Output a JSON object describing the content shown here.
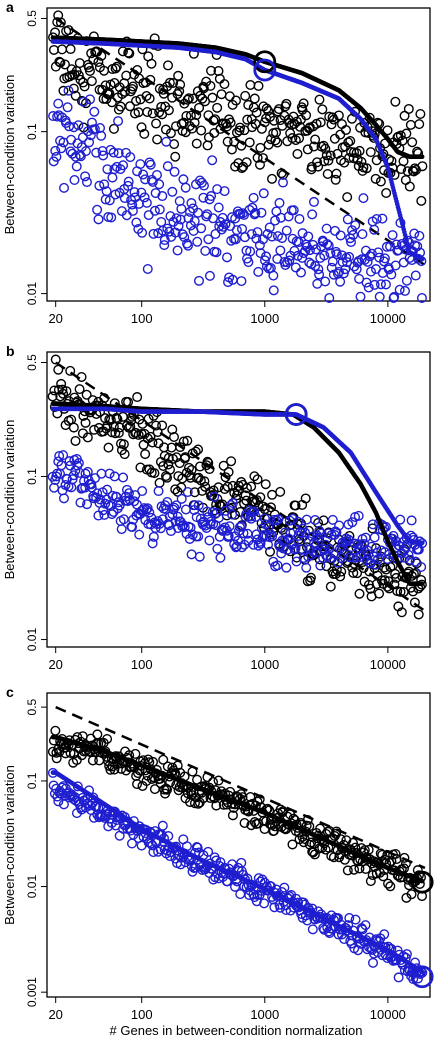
{
  "figure": {
    "xlabel": "# Genes in between-condition normalization",
    "colors": {
      "black_series": "#000000",
      "blue_series": "#1f1fd0",
      "reference_line": "#000000"
    }
  },
  "chart_data": [
    {
      "panel": "a",
      "type": "scatter",
      "ylabel": "Between-condition variation",
      "xlim": [
        17,
        22000
      ],
      "ylim": [
        0.009,
        0.58
      ],
      "log_x": true,
      "log_y": true,
      "x_ticks": [
        20,
        100,
        1000,
        10000
      ],
      "x_tick_labels": [
        "20",
        "100",
        "1000",
        "10000"
      ],
      "y_ticks": [
        0.01,
        0.1,
        0.5
      ],
      "y_tick_labels": [
        "0.01",
        "0.1",
        "0.5"
      ],
      "reference_line": {
        "x": [
          20,
          20000
        ],
        "y": [
          0.5,
          0.015
        ]
      },
      "series": [
        {
          "color": "black",
          "curve": {
            "x": [
              20,
              50,
              100,
              200,
              400,
              700,
              1000,
              2000,
              4000,
              6000,
              8000,
              10000,
              12000,
              15000,
              20000
            ],
            "y": [
              0.38,
              0.37,
              0.36,
              0.35,
              0.33,
              0.3,
              0.27,
              0.23,
              0.18,
              0.14,
              0.11,
              0.09,
              0.075,
              0.07,
              0.07
            ]
          },
          "scatter_trend": {
            "x": [
              20,
              50,
              100,
              300,
              1000,
              3000,
              10000,
              20000
            ],
            "y": [
              0.28,
              0.22,
              0.18,
              0.14,
              0.11,
              0.09,
              0.075,
              0.07
            ]
          },
          "scatter_spread": 0.3,
          "highlight": {
            "x": 1000,
            "y": 0.27
          }
        },
        {
          "color": "blue",
          "curve": {
            "x": [
              20,
              50,
              100,
              200,
              400,
              700,
              1000,
              2000,
              4000,
              6000,
              8000,
              10000,
              12000,
              15000,
              20000
            ],
            "y": [
              0.36,
              0.35,
              0.34,
              0.33,
              0.31,
              0.28,
              0.24,
              0.2,
              0.16,
              0.12,
              0.09,
              0.06,
              0.035,
              0.018,
              0.016
            ]
          },
          "scatter_trend": {
            "x": [
              20,
              50,
              100,
              300,
              1000,
              3000,
              10000,
              20000
            ],
            "y": [
              0.1,
              0.06,
              0.04,
              0.028,
              0.022,
              0.018,
              0.016,
              0.016
            ]
          },
          "scatter_spread": 0.35,
          "highlight": {
            "x": 1000,
            "y": 0.24
          }
        }
      ]
    },
    {
      "panel": "b",
      "type": "scatter",
      "ylabel": "Between-condition variation",
      "xlim": [
        17,
        22000
      ],
      "ylim": [
        0.009,
        0.58
      ],
      "log_x": true,
      "log_y": true,
      "x_ticks": [
        20,
        100,
        1000,
        10000
      ],
      "x_tick_labels": [
        "20",
        "100",
        "1000",
        "10000"
      ],
      "y_ticks": [
        0.01,
        0.1,
        0.5
      ],
      "y_tick_labels": [
        "0.01",
        "0.1",
        "0.5"
      ],
      "reference_line": {
        "x": [
          20,
          20000
        ],
        "y": [
          0.5,
          0.015
        ]
      },
      "series": [
        {
          "color": "black",
          "curve": {
            "x": [
              20,
              50,
              100,
              300,
              1000,
              1700,
              2500,
              4000,
              6000,
              8000,
              10000,
              12000,
              15000,
              20000
            ],
            "y": [
              0.28,
              0.27,
              0.26,
              0.25,
              0.25,
              0.24,
              0.2,
              0.14,
              0.09,
              0.06,
              0.04,
              0.03,
              0.022,
              0.022
            ]
          },
          "scatter_trend": {
            "x": [
              20,
              50,
              100,
              300,
              1000,
              3000,
              10000,
              20000
            ],
            "y": [
              0.32,
              0.23,
              0.17,
              0.1,
              0.06,
              0.035,
              0.025,
              0.022
            ]
          },
          "scatter_spread": 0.22,
          "highlight": {
            "x": 1800,
            "y": 0.24
          }
        },
        {
          "color": "blue",
          "curve": {
            "x": [
              20,
              50,
              100,
              300,
              1000,
              1800,
              3000,
              5000,
              8000,
              12000,
              15000,
              20000
            ],
            "y": [
              0.26,
              0.26,
              0.25,
              0.25,
              0.24,
              0.24,
              0.2,
              0.14,
              0.08,
              0.05,
              0.04,
              0.039
            ]
          },
          "scatter_trend": {
            "x": [
              20,
              50,
              100,
              300,
              1000,
              3000,
              10000,
              20000
            ],
            "y": [
              0.11,
              0.08,
              0.06,
              0.05,
              0.044,
              0.041,
              0.039,
              0.039
            ]
          },
          "scatter_spread": 0.18,
          "highlight": {
            "x": 1800,
            "y": 0.24
          }
        }
      ]
    },
    {
      "panel": "c",
      "type": "scatter",
      "ylabel": "Between-condition variation",
      "xlim": [
        17,
        22000
      ],
      "ylim": [
        0.0009,
        0.68
      ],
      "log_x": true,
      "log_y": true,
      "x_ticks": [
        20,
        100,
        1000,
        10000
      ],
      "x_tick_labels": [
        "20",
        "100",
        "1000",
        "10000"
      ],
      "y_ticks": [
        0.001,
        0.01,
        0.1,
        0.5
      ],
      "y_tick_labels": [
        "0.001",
        "0.01",
        "0.1",
        "0.5"
      ],
      "reference_line": {
        "x": [
          20,
          20000
        ],
        "y": [
          0.5,
          0.015
        ]
      },
      "series": [
        {
          "color": "black",
          "curve": {
            "x": [
              20,
              50,
              100,
              300,
              1000,
              3000,
              10000,
              20000
            ],
            "y": [
              0.26,
              0.19,
              0.14,
              0.085,
              0.05,
              0.028,
              0.015,
              0.011
            ]
          },
          "scatter_trend": {
            "x": [
              20,
              50,
              100,
              300,
              1000,
              3000,
              10000,
              20000
            ],
            "y": [
              0.24,
              0.18,
              0.13,
              0.08,
              0.048,
              0.027,
              0.015,
              0.011
            ]
          },
          "scatter_spread": 0.18,
          "highlight": {
            "x": 19000,
            "y": 0.011
          }
        },
        {
          "color": "blue",
          "curve": {
            "x": [
              20,
              50,
              100,
              300,
              1000,
              3000,
              10000,
              20000
            ],
            "y": [
              0.12,
              0.06,
              0.035,
              0.018,
              0.0095,
              0.005,
              0.0025,
              0.0015
            ]
          },
          "scatter_trend": {
            "x": [
              20,
              50,
              100,
              300,
              1000,
              3000,
              10000,
              20000
            ],
            "y": [
              0.085,
              0.05,
              0.032,
              0.017,
              0.009,
              0.0048,
              0.0024,
              0.0014
            ]
          },
          "scatter_spread": 0.14,
          "highlight": {
            "x": 19000,
            "y": 0.0014
          }
        }
      ]
    }
  ]
}
